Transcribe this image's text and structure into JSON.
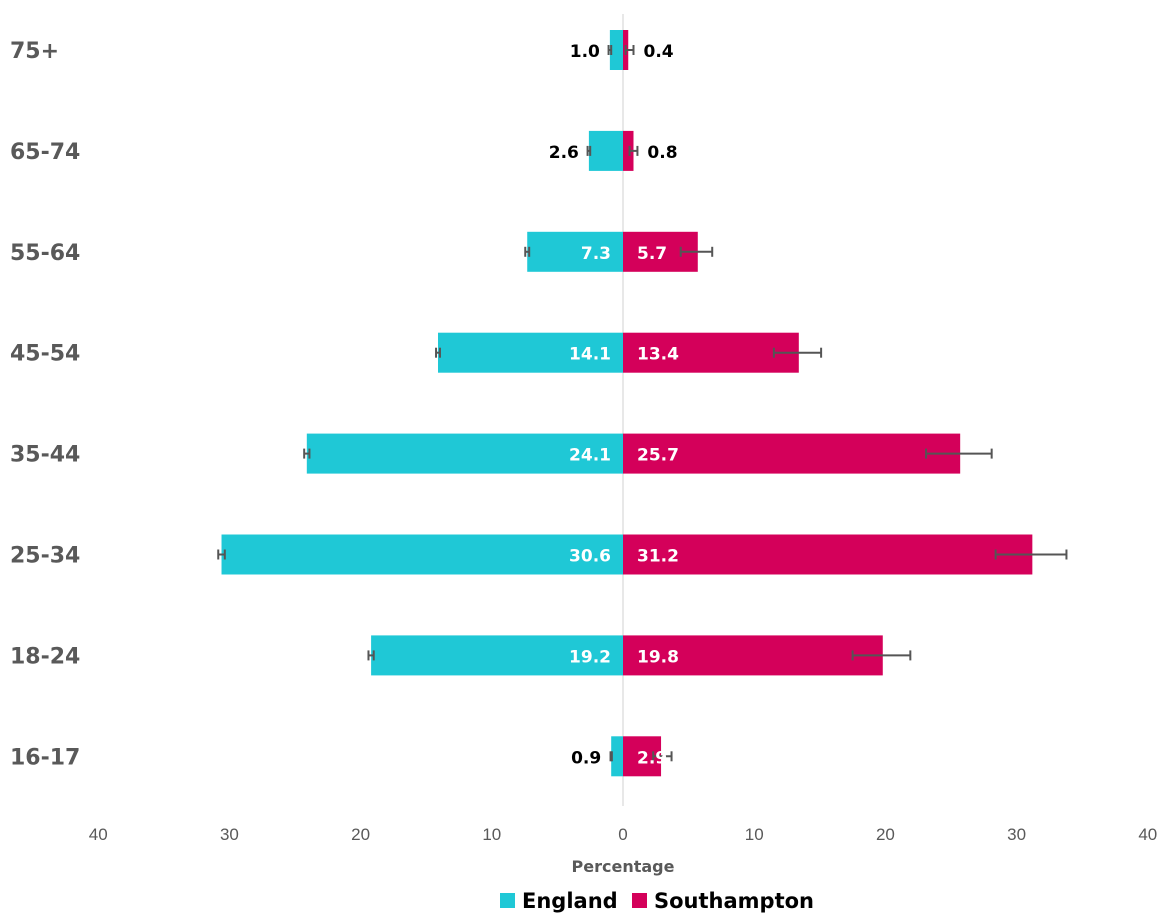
{
  "chart_data": {
    "type": "bar",
    "orientation": "horizontal-pyramid",
    "categories": [
      "75+",
      "65-74",
      "55-64",
      "45-54",
      "35-44",
      "25-34",
      "18-24",
      "16-17"
    ],
    "series": [
      {
        "name": "England",
        "side": "left",
        "color": "#1fc8d6",
        "values": [
          1.0,
          2.6,
          7.3,
          14.1,
          24.1,
          30.6,
          19.2,
          0.9
        ],
        "labels": [
          "1.0",
          "2.6",
          "7.3",
          "14.1",
          "24.1",
          "30.6",
          "19.2",
          "0.9"
        ],
        "error_low": [
          0.9,
          2.5,
          7.15,
          13.95,
          23.9,
          30.35,
          19.0,
          0.85
        ],
        "error_high": [
          1.1,
          2.7,
          7.45,
          14.25,
          24.3,
          30.85,
          19.4,
          0.95
        ]
      },
      {
        "name": "Southampton",
        "side": "right",
        "color": "#d4005a",
        "values": [
          0.4,
          0.8,
          5.7,
          13.4,
          25.7,
          31.2,
          19.8,
          2.9
        ],
        "labels": [
          "0.4",
          "0.8",
          "5.7",
          "13.4",
          "25.7",
          "31.2",
          "19.8",
          "2.9"
        ],
        "error_low": [
          0.2,
          0.5,
          4.4,
          11.5,
          23.1,
          28.4,
          17.5,
          2.3
        ],
        "error_high": [
          0.8,
          1.1,
          6.8,
          15.1,
          28.1,
          33.8,
          21.9,
          3.7
        ]
      }
    ],
    "xlabel": "Percentage",
    "xlim": [
      -40,
      40
    ],
    "ticks": [
      "40",
      "30",
      "20",
      "10",
      "0",
      "10",
      "20",
      "30",
      "40"
    ],
    "legend": "bottom",
    "grid": false
  }
}
